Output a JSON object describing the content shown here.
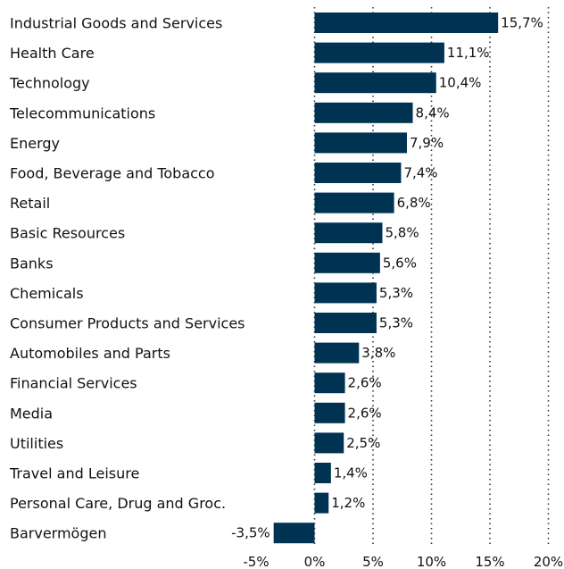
{
  "chart_data": {
    "type": "bar",
    "orientation": "horizontal",
    "categories": [
      "Industrial Goods and Services",
      "Health Care",
      "Technology",
      "Telecommunications",
      "Energy",
      "Food, Beverage and Tobacco",
      "Retail",
      "Basic Resources",
      "Banks",
      "Chemicals",
      "Consumer Products and Services",
      "Automobiles and Parts",
      "Financial Services",
      "Media",
      "Utilities",
      "Travel and Leisure",
      "Personal Care, Drug and Groc.",
      "Barvermögen"
    ],
    "values": [
      15.7,
      11.1,
      10.4,
      8.4,
      7.9,
      7.4,
      6.8,
      5.8,
      5.6,
      5.3,
      5.3,
      3.8,
      2.6,
      2.6,
      2.5,
      1.4,
      1.2,
      -3.5
    ],
    "value_labels": [
      "15,7%",
      "11,1%",
      "10,4%",
      "8,4%",
      "7,9%",
      "7,4%",
      "6,8%",
      "5,8%",
      "5,6%",
      "5,3%",
      "5,3%",
      "3,8%",
      "2,6%",
      "2,6%",
      "2,5%",
      "1,4%",
      "1,2%",
      "-3,5%"
    ],
    "xticks": [
      -5,
      0,
      5,
      10,
      15,
      20
    ],
    "xtick_labels": [
      "-5%",
      "0%",
      "5%",
      "10%",
      "15%",
      "20%"
    ],
    "xlim": [
      -5,
      20
    ],
    "grid": "vertical-dotted",
    "bar_color": "#003352",
    "title": "",
    "xlabel": "",
    "ylabel": ""
  }
}
